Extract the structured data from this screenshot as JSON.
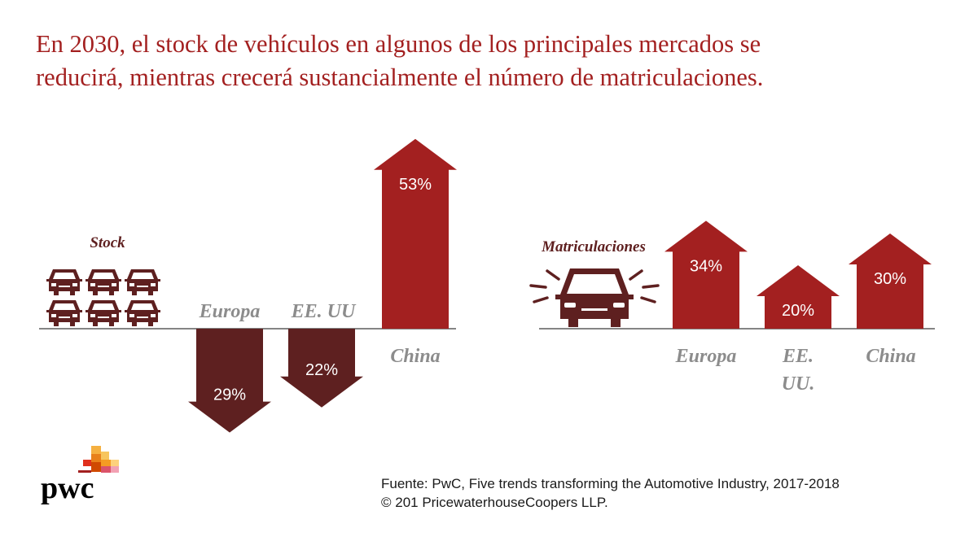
{
  "title_lines": [
    "En 2030, el stock de vehículos en algunos de los principales mercados se",
    "reducirá, mientras crecerá sustancialmente el número de matriculaciones."
  ],
  "source_lines": [
    "Fuente: PwC, Five trends transforming the Automotive Industry, 2017-2018",
    "© 201 PricewaterhouseCoopers LLP."
  ],
  "logo_text": "pwc",
  "colors": {
    "title": "#a32020",
    "decline": "#5e2020",
    "growth": "#a32020",
    "category": "#8c8c8c",
    "icon": "#5e2020"
  },
  "chart_data": [
    {
      "type": "bar",
      "title": "Stock",
      "icon": "cars-icon",
      "unit": "%",
      "categories": [
        "Europa",
        "EE. UU",
        "China"
      ],
      "values": [
        -29,
        -22,
        53
      ],
      "labels": [
        "29%",
        "22%",
        "53%"
      ]
    },
    {
      "type": "bar",
      "title": "Matriculaciones",
      "icon": "car-front-icon",
      "unit": "%",
      "categories": [
        "Europa",
        "EE. UU.",
        "China"
      ],
      "values": [
        34,
        20,
        30
      ],
      "labels": [
        "34%",
        "20%",
        "30%"
      ]
    }
  ]
}
